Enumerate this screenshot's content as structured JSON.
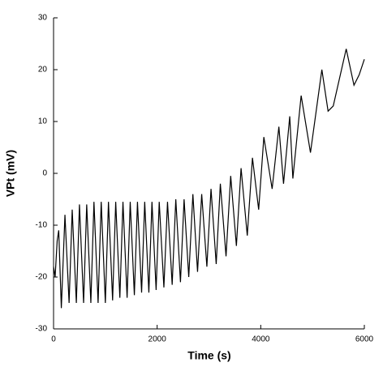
{
  "chart_data": {
    "type": "line",
    "xlabel": "Time (s)",
    "ylabel": "VPt (mV)",
    "x": [
      0,
      30,
      70,
      100,
      150,
      220,
      300,
      360,
      440,
      500,
      580,
      640,
      720,
      780,
      860,
      920,
      1000,
      1060,
      1140,
      1200,
      1280,
      1340,
      1420,
      1480,
      1560,
      1620,
      1700,
      1760,
      1840,
      1900,
      1980,
      2040,
      2130,
      2200,
      2290,
      2360,
      2450,
      2520,
      2610,
      2690,
      2780,
      2860,
      2960,
      3040,
      3140,
      3220,
      3330,
      3420,
      3530,
      3620,
      3740,
      3840,
      3960,
      4060,
      4220,
      4350,
      4440,
      4560,
      4620,
      4780,
      4960,
      5180,
      5300,
      5400,
      5650,
      5800,
      5900,
      6000
    ],
    "series": [
      {
        "name": "VPt",
        "color": "#000000",
        "values": [
          -18,
          -20,
          -13,
          -11,
          -26,
          -8,
          -25,
          -7,
          -25,
          -6,
          -25,
          -6,
          -25,
          -5.5,
          -25,
          -5.5,
          -25,
          -5.5,
          -24.5,
          -5.5,
          -24,
          -5.5,
          -24,
          -5.5,
          -23.5,
          -5.5,
          -23,
          -5.5,
          -23,
          -5.5,
          -22.5,
          -5.5,
          -22,
          -5.5,
          -21.5,
          -5,
          -21,
          -5,
          -20,
          -4,
          -19,
          -4,
          -18,
          -3,
          -17.5,
          -2,
          -16,
          -0.5,
          -14,
          1,
          -12,
          3,
          -7,
          7,
          -3,
          9,
          -2,
          11,
          -1,
          15,
          4,
          20,
          12,
          13,
          24,
          17,
          19,
          22
        ]
      }
    ],
    "xlim": [
      0,
      6000
    ],
    "xticks": [
      0,
      2000,
      4000,
      6000
    ],
    "ylim": [
      -30,
      30
    ],
    "yticks": [
      -30,
      -20,
      -10,
      0,
      10,
      20,
      30
    ]
  }
}
